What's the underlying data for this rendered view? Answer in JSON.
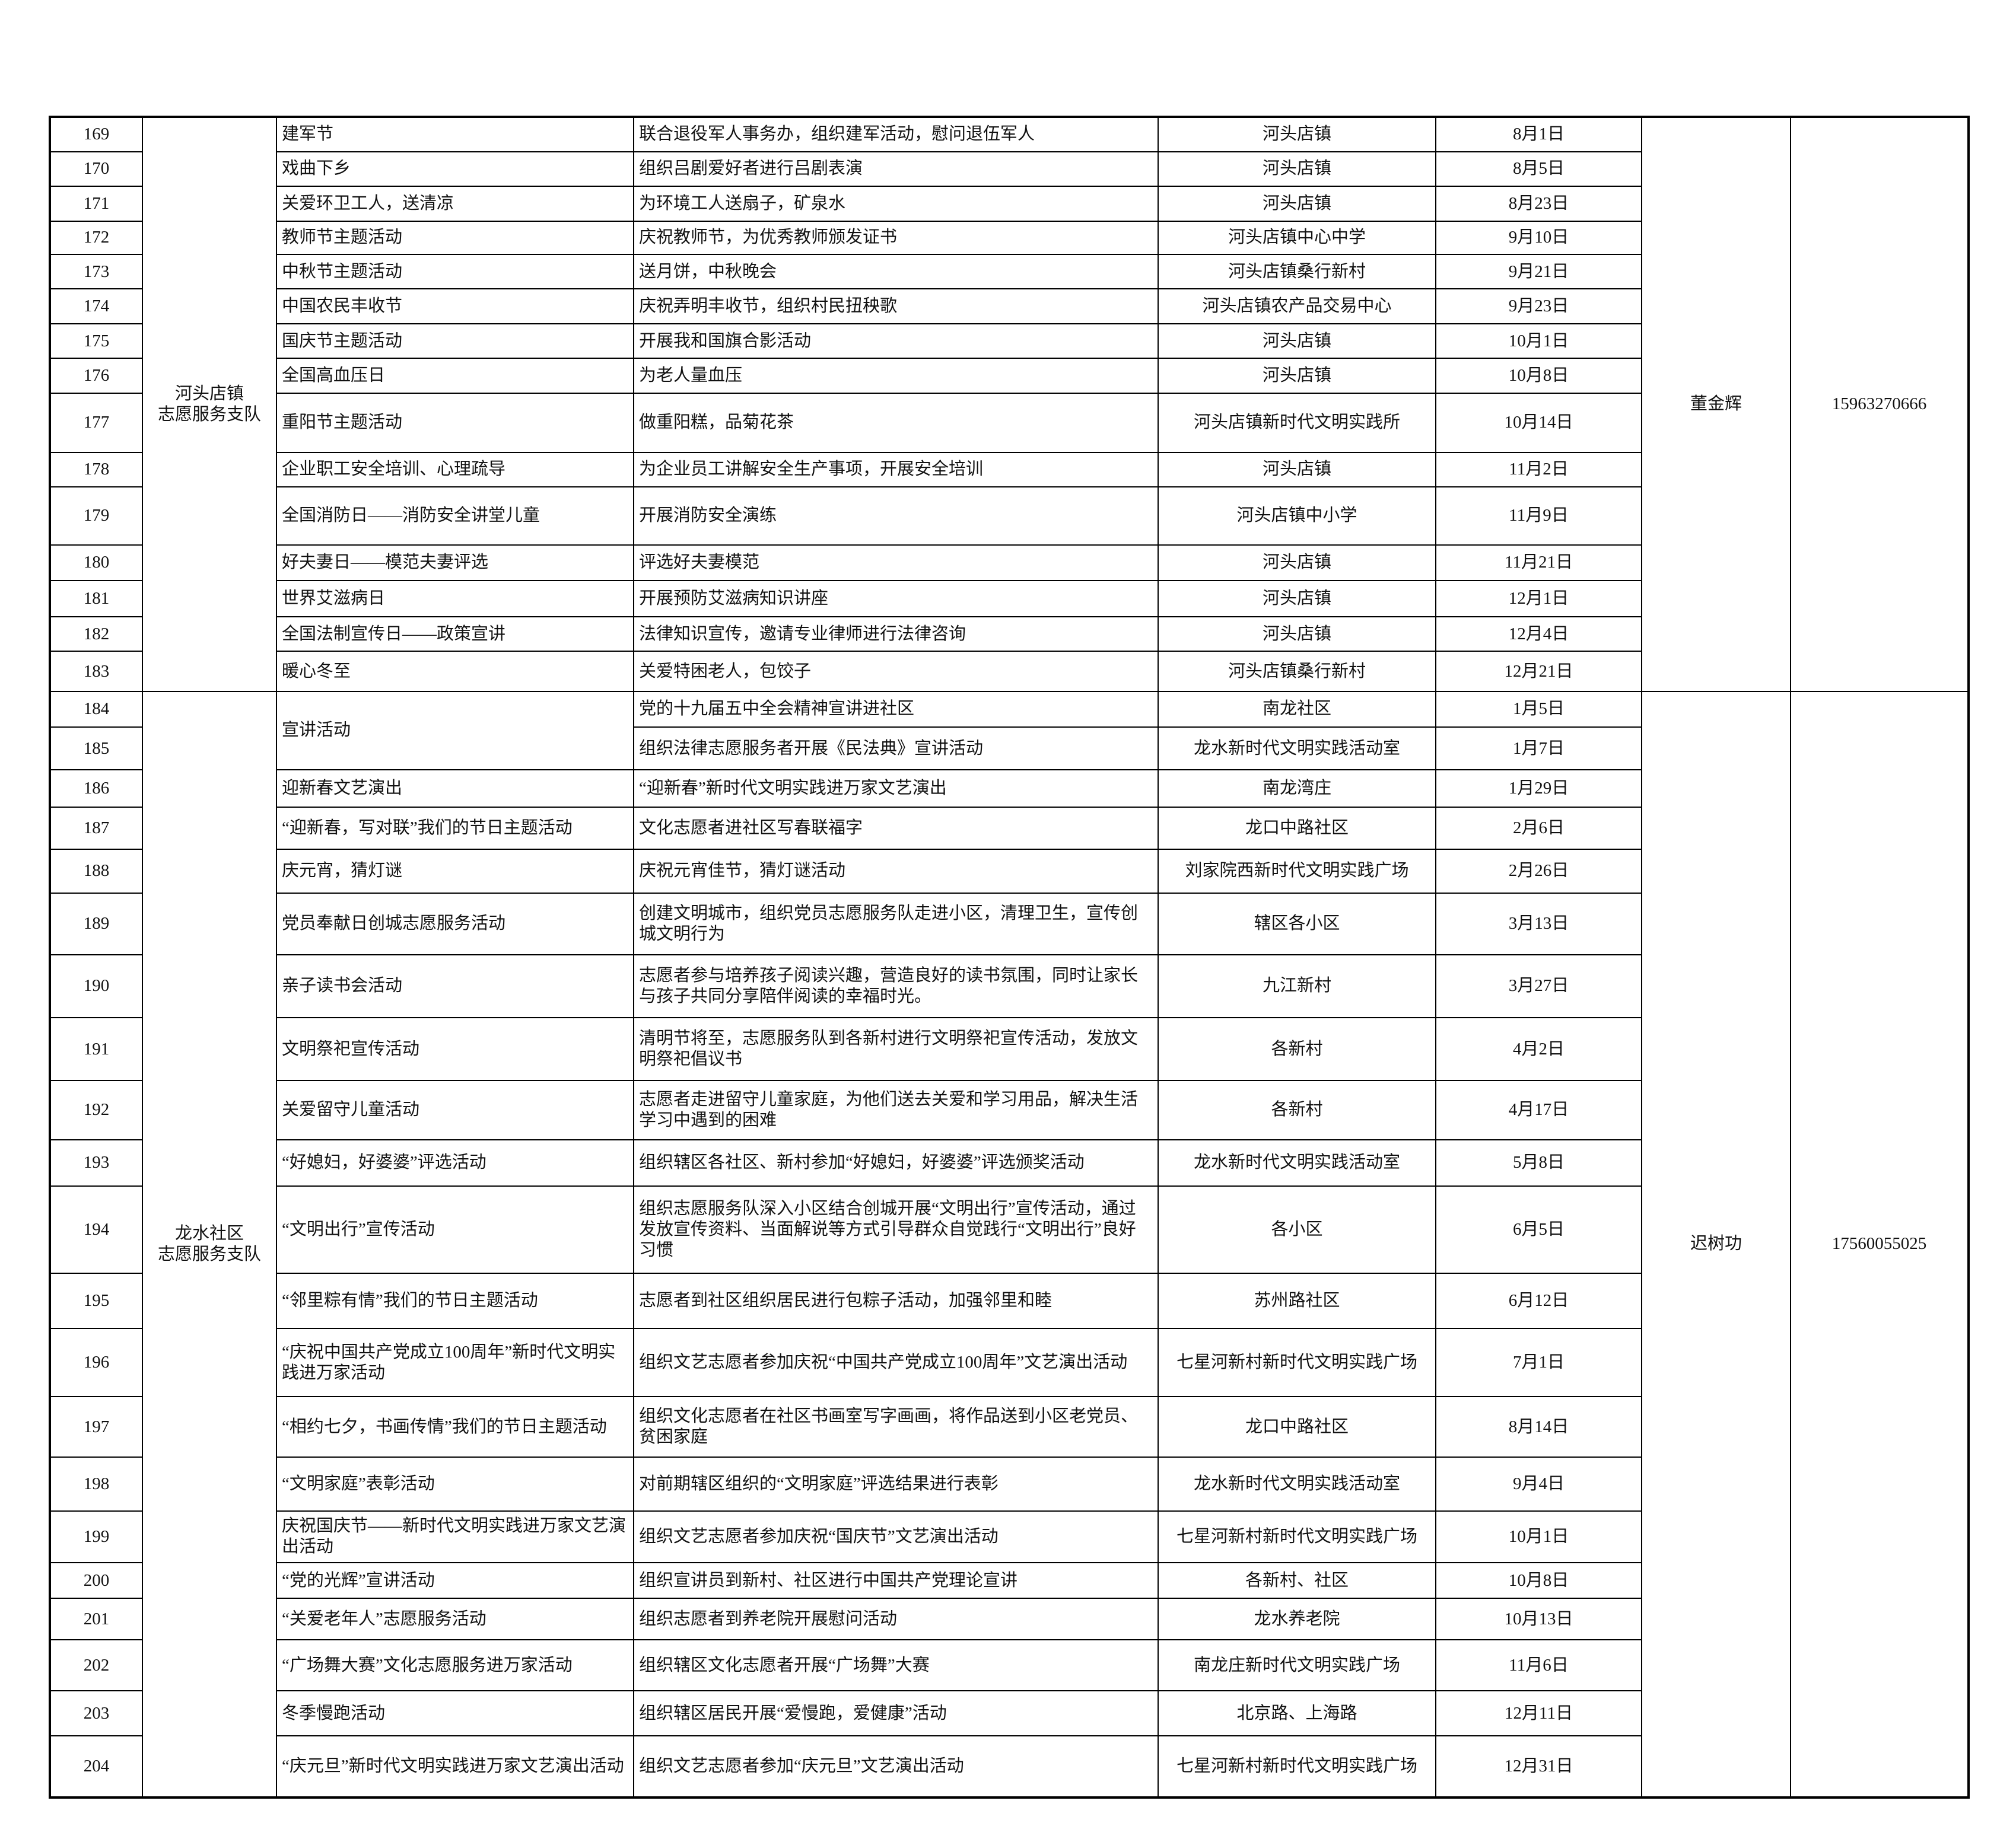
{
  "table": {
    "groups": [
      {
        "name": "河头店镇\n志愿服务支队",
        "contact": "董金辉",
        "phone": "15963270666",
        "rows": [
          {
            "no": 169,
            "activity": "建军节",
            "content": "联合退役军人事务办，组织建军活动，慰问退伍军人",
            "location": "河头店镇",
            "date": "8月1日"
          },
          {
            "no": 170,
            "activity": "戏曲下乡",
            "content": "组织吕剧爱好者进行吕剧表演",
            "location": "河头店镇",
            "date": "8月5日"
          },
          {
            "no": 171,
            "activity": "关爱环卫工人，送清凉",
            "content": "为环境工人送扇子，矿泉水",
            "location": "河头店镇",
            "date": "8月23日"
          },
          {
            "no": 172,
            "activity": "教师节主题活动",
            "content": "庆祝教师节，为优秀教师颁发证书",
            "location": "河头店镇中心中学",
            "date": "9月10日"
          },
          {
            "no": 173,
            "activity": "中秋节主题活动",
            "content": "送月饼，中秋晚会",
            "location": "河头店镇桑行新村",
            "date": "9月21日"
          },
          {
            "no": 174,
            "activity": "中国农民丰收节",
            "content": "庆祝弄明丰收节，组织村民扭秧歌",
            "location": "河头店镇农产品交易中心",
            "date": "9月23日"
          },
          {
            "no": 175,
            "activity": "国庆节主题活动",
            "content": "开展我和国旗合影活动",
            "location": "河头店镇",
            "date": "10月1日"
          },
          {
            "no": 176,
            "activity": "全国高血压日",
            "content": "为老人量血压",
            "location": "河头店镇",
            "date": "10月8日"
          },
          {
            "no": 177,
            "activity": "重阳节主题活动",
            "content": "做重阳糕，品菊花茶",
            "location": "河头店镇新时代文明实践所",
            "date": "10月14日"
          },
          {
            "no": 178,
            "activity": "企业职工安全培训、心理疏导",
            "content": "为企业员工讲解安全生产事项，开展安全培训",
            "location": "河头店镇",
            "date": "11月2日"
          },
          {
            "no": 179,
            "activity": "全国消防日——消防安全讲堂儿童",
            "content": "开展消防安全演练",
            "location": "河头店镇中小学",
            "date": "11月9日"
          },
          {
            "no": 180,
            "activity": "好夫妻日——模范夫妻评选",
            "content": "评选好夫妻模范",
            "location": "河头店镇",
            "date": "11月21日"
          },
          {
            "no": 181,
            "activity": "世界艾滋病日",
            "content": "开展预防艾滋病知识讲座",
            "location": "河头店镇",
            "date": "12月1日"
          },
          {
            "no": 182,
            "activity": "全国法制宣传日——政策宣讲",
            "content": "法律知识宣传，邀请专业律师进行法律咨询",
            "location": "河头店镇",
            "date": "12月4日"
          },
          {
            "no": 183,
            "activity": "暖心冬至",
            "content": "关爱特困老人，包饺子",
            "location": "河头店镇桑行新村",
            "date": "12月21日"
          }
        ]
      },
      {
        "name": "龙水社区\n志愿服务支队",
        "contact": "迟树功",
        "phone": "17560055025",
        "rows": [
          {
            "no": 184,
            "activity": "宣讲活动",
            "content": "党的十九届五中全会精神宣讲进社区",
            "location": "南龙社区",
            "date": "1月5日"
          },
          {
            "no": 185,
            "activity": null,
            "content": "组织法律志愿服务者开展《民法典》宣讲活动",
            "location": "龙水新时代文明实践活动室",
            "date": "1月7日"
          },
          {
            "no": 186,
            "activity": "迎新春文艺演出",
            "content": "“迎新春”新时代文明实践进万家文艺演出",
            "location": "南龙湾庄",
            "date": "1月29日"
          },
          {
            "no": 187,
            "activity": "“迎新春，写对联”我们的节日主题活动",
            "content": "文化志愿者进社区写春联福字",
            "location": "龙口中路社区",
            "date": "2月6日"
          },
          {
            "no": 188,
            "activity": "庆元宵，猜灯谜",
            "content": "庆祝元宵佳节，猜灯谜活动",
            "location": "刘家院西新时代文明实践广场",
            "date": "2月26日"
          },
          {
            "no": 189,
            "activity": "党员奉献日创城志愿服务活动",
            "content": "创建文明城市，组织党员志愿服务队走进小区，清理卫生，宣传创城文明行为",
            "location": "辖区各小区",
            "date": "3月13日"
          },
          {
            "no": 190,
            "activity": "亲子读书会活动",
            "content": "志愿者参与培养孩子阅读兴趣，营造良好的读书氛围，同时让家长与孩子共同分享陪伴阅读的幸福时光。",
            "location": "九江新村",
            "date": "3月27日"
          },
          {
            "no": 191,
            "activity": "文明祭祀宣传活动",
            "content": "清明节将至，志愿服务队到各新村进行文明祭祀宣传活动，发放文明祭祀倡议书",
            "location": "各新村",
            "date": "4月2日"
          },
          {
            "no": 192,
            "activity": "关爱留守儿童活动",
            "content": "志愿者走进留守儿童家庭，为他们送去关爱和学习用品，解决生活学习中遇到的困难",
            "location": "各新村",
            "date": "4月17日"
          },
          {
            "no": 193,
            "activity": "“好媳妇，好婆婆”评选活动",
            "content": "组织辖区各社区、新村参加“好媳妇，好婆婆”评选颁奖活动",
            "location": "龙水新时代文明实践活动室",
            "date": "5月8日"
          },
          {
            "no": 194,
            "activity": "“文明出行”宣传活动",
            "content": "组织志愿服务队深入小区结合创城开展“文明出行”宣传活动，通过发放宣传资料、当面解说等方式引导群众自觉践行“文明出行”良好习惯",
            "location": "各小区",
            "date": "6月5日"
          },
          {
            "no": 195,
            "activity": "“邻里粽有情”我们的节日主题活动",
            "content": "志愿者到社区组织居民进行包粽子活动，加强邻里和睦",
            "location": "苏州路社区",
            "date": "6月12日"
          },
          {
            "no": 196,
            "activity": "“庆祝中国共产党成立100周年”新时代文明实践进万家活动",
            "content": "组织文艺志愿者参加庆祝“中国共产党成立100周年”文艺演出活动",
            "location": "七星河新村新时代文明实践广场",
            "date": "7月1日"
          },
          {
            "no": 197,
            "activity": "“相约七夕，书画传情”我们的节日主题活动",
            "content": "组织文化志愿者在社区书画室写字画画，将作品送到小区老党员、贫困家庭",
            "location": "龙口中路社区",
            "date": "8月14日"
          },
          {
            "no": 198,
            "activity": "“文明家庭”表彰活动",
            "content": "对前期辖区组织的“文明家庭”评选结果进行表彰",
            "location": "龙水新时代文明实践活动室",
            "date": "9月4日"
          },
          {
            "no": 199,
            "activity": "庆祝国庆节——新时代文明实践进万家文艺演出活动",
            "content": "组织文艺志愿者参加庆祝“国庆节”文艺演出活动",
            "location": "七星河新村新时代文明实践广场",
            "date": "10月1日"
          },
          {
            "no": 200,
            "activity": "“党的光辉”宣讲活动",
            "content": "组织宣讲员到新村、社区进行中国共产党理论宣讲",
            "location": "各新村、社区",
            "date": "10月8日"
          },
          {
            "no": 201,
            "activity": "“关爱老年人”志愿服务活动",
            "content": "组织志愿者到养老院开展慰问活动",
            "location": "龙水养老院",
            "date": "10月13日"
          },
          {
            "no": 202,
            "activity": "“广场舞大赛”文化志愿服务进万家活动",
            "content": "组织辖区文化志愿者开展“广场舞”大赛",
            "location": "南龙庄新时代文明实践广场",
            "date": "11月6日"
          },
          {
            "no": 203,
            "activity": "冬季慢跑活动",
            "content": "组织辖区居民开展“爱慢跑，爱健康”活动",
            "location": "北京路、上海路",
            "date": "12月11日"
          },
          {
            "no": 204,
            "activity": "“庆元旦”新时代文明实践进万家文艺演出活动",
            "content": "组织文艺志愿者参加“庆元旦”文艺演出活动",
            "location": "七星河新村新时代文明实践广场",
            "date": "12月31日"
          }
        ]
      }
    ]
  }
}
